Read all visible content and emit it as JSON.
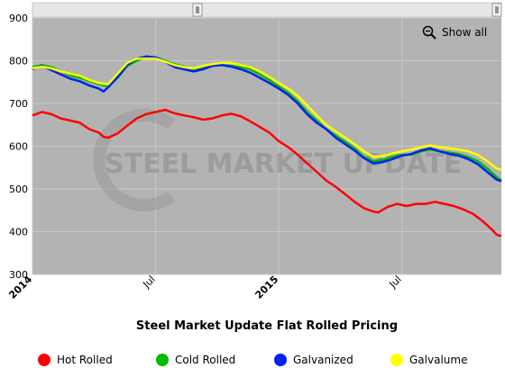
{
  "chart_data": {
    "type": "line",
    "title": "Steel Market Update Flat Rolled Pricing",
    "watermark": "STEEL MARKET UPDATE",
    "ylim": [
      300,
      900
    ],
    "y_ticks": [
      300,
      400,
      500,
      600,
      700,
      800,
      900
    ],
    "x_ticks": [
      {
        "label": "2014",
        "x": 0,
        "bold": true
      },
      {
        "label": "Jul",
        "x": 26,
        "bold": false
      },
      {
        "label": "2015",
        "x": 52,
        "bold": true
      },
      {
        "label": "Jul",
        "x": 78,
        "bold": false
      }
    ],
    "x_range": [
      0,
      99
    ],
    "grid": true,
    "legend_position": "bottom",
    "reset_zoom_label": "Show all",
    "series": [
      {
        "name": "Hot Rolled",
        "color": "#ff0000",
        "points": [
          [
            0,
            672
          ],
          [
            2,
            680
          ],
          [
            4,
            675
          ],
          [
            6,
            665
          ],
          [
            8,
            660
          ],
          [
            10,
            655
          ],
          [
            12,
            640
          ],
          [
            14,
            632
          ],
          [
            15,
            622
          ],
          [
            16,
            620
          ],
          [
            18,
            630
          ],
          [
            20,
            648
          ],
          [
            22,
            665
          ],
          [
            24,
            675
          ],
          [
            26,
            680
          ],
          [
            28,
            685
          ],
          [
            30,
            677
          ],
          [
            32,
            672
          ],
          [
            34,
            668
          ],
          [
            36,
            662
          ],
          [
            38,
            665
          ],
          [
            40,
            672
          ],
          [
            42,
            676
          ],
          [
            44,
            670
          ],
          [
            46,
            658
          ],
          [
            48,
            645
          ],
          [
            50,
            632
          ],
          [
            52,
            612
          ],
          [
            54,
            598
          ],
          [
            56,
            580
          ],
          [
            58,
            560
          ],
          [
            60,
            540
          ],
          [
            62,
            520
          ],
          [
            64,
            505
          ],
          [
            66,
            488
          ],
          [
            68,
            470
          ],
          [
            70,
            455
          ],
          [
            72,
            447
          ],
          [
            73,
            445
          ],
          [
            75,
            458
          ],
          [
            77,
            465
          ],
          [
            79,
            460
          ],
          [
            81,
            465
          ],
          [
            83,
            465
          ],
          [
            85,
            470
          ],
          [
            87,
            465
          ],
          [
            89,
            460
          ],
          [
            91,
            452
          ],
          [
            93,
            442
          ],
          [
            95,
            425
          ],
          [
            97,
            405
          ],
          [
            98,
            393
          ],
          [
            99,
            390
          ]
        ]
      },
      {
        "name": "Cold Rolled",
        "color": "#00bb00",
        "points": [
          [
            0,
            785
          ],
          [
            2,
            790
          ],
          [
            4,
            785
          ],
          [
            6,
            775
          ],
          [
            8,
            765
          ],
          [
            10,
            760
          ],
          [
            12,
            752
          ],
          [
            14,
            745
          ],
          [
            16,
            740
          ],
          [
            18,
            760
          ],
          [
            20,
            788
          ],
          [
            22,
            800
          ],
          [
            24,
            808
          ],
          [
            26,
            808
          ],
          [
            28,
            800
          ],
          [
            30,
            792
          ],
          [
            32,
            786
          ],
          [
            34,
            780
          ],
          [
            36,
            785
          ],
          [
            38,
            790
          ],
          [
            40,
            790
          ],
          [
            42,
            788
          ],
          [
            44,
            785
          ],
          [
            46,
            780
          ],
          [
            48,
            768
          ],
          [
            50,
            755
          ],
          [
            52,
            740
          ],
          [
            54,
            725
          ],
          [
            56,
            705
          ],
          [
            58,
            680
          ],
          [
            60,
            660
          ],
          [
            62,
            640
          ],
          [
            64,
            625
          ],
          [
            66,
            610
          ],
          [
            68,
            595
          ],
          [
            70,
            575
          ],
          [
            72,
            565
          ],
          [
            74,
            568
          ],
          [
            76,
            575
          ],
          [
            78,
            580
          ],
          [
            80,
            580
          ],
          [
            82,
            588
          ],
          [
            84,
            592
          ],
          [
            86,
            588
          ],
          [
            88,
            585
          ],
          [
            90,
            582
          ],
          [
            92,
            575
          ],
          [
            94,
            565
          ],
          [
            96,
            548
          ],
          [
            98,
            528
          ],
          [
            99,
            520
          ]
        ]
      },
      {
        "name": "Galvanized",
        "color": "#0022ee",
        "points": [
          [
            0,
            780
          ],
          [
            2,
            788
          ],
          [
            4,
            778
          ],
          [
            6,
            768
          ],
          [
            8,
            758
          ],
          [
            10,
            752
          ],
          [
            12,
            742
          ],
          [
            14,
            735
          ],
          [
            15,
            728
          ],
          [
            16,
            738
          ],
          [
            18,
            762
          ],
          [
            20,
            790
          ],
          [
            22,
            805
          ],
          [
            24,
            810
          ],
          [
            26,
            808
          ],
          [
            28,
            798
          ],
          [
            30,
            785
          ],
          [
            32,
            780
          ],
          [
            34,
            775
          ],
          [
            36,
            780
          ],
          [
            38,
            788
          ],
          [
            40,
            790
          ],
          [
            42,
            786
          ],
          [
            44,
            780
          ],
          [
            46,
            772
          ],
          [
            48,
            760
          ],
          [
            50,
            748
          ],
          [
            52,
            735
          ],
          [
            54,
            720
          ],
          [
            56,
            700
          ],
          [
            58,
            675
          ],
          [
            60,
            655
          ],
          [
            62,
            640
          ],
          [
            64,
            620
          ],
          [
            66,
            605
          ],
          [
            68,
            590
          ],
          [
            70,
            572
          ],
          [
            72,
            560
          ],
          [
            74,
            563
          ],
          [
            76,
            570
          ],
          [
            78,
            578
          ],
          [
            80,
            582
          ],
          [
            82,
            590
          ],
          [
            84,
            595
          ],
          [
            86,
            588
          ],
          [
            88,
            582
          ],
          [
            90,
            578
          ],
          [
            92,
            570
          ],
          [
            94,
            558
          ],
          [
            96,
            540
          ],
          [
            98,
            522
          ],
          [
            99,
            518
          ]
        ]
      },
      {
        "name": "Galvalume",
        "color": "#ffff00",
        "points": [
          [
            0,
            782
          ],
          [
            2,
            786
          ],
          [
            4,
            782
          ],
          [
            6,
            775
          ],
          [
            8,
            770
          ],
          [
            10,
            765
          ],
          [
            12,
            755
          ],
          [
            14,
            748
          ],
          [
            16,
            745
          ],
          [
            18,
            770
          ],
          [
            20,
            795
          ],
          [
            22,
            805
          ],
          [
            24,
            805
          ],
          [
            26,
            805
          ],
          [
            28,
            798
          ],
          [
            30,
            790
          ],
          [
            32,
            785
          ],
          [
            34,
            782
          ],
          [
            36,
            788
          ],
          [
            38,
            792
          ],
          [
            40,
            795
          ],
          [
            42,
            795
          ],
          [
            44,
            790
          ],
          [
            46,
            785
          ],
          [
            48,
            775
          ],
          [
            50,
            762
          ],
          [
            52,
            748
          ],
          [
            54,
            735
          ],
          [
            56,
            718
          ],
          [
            58,
            695
          ],
          [
            60,
            672
          ],
          [
            62,
            650
          ],
          [
            64,
            635
          ],
          [
            66,
            620
          ],
          [
            68,
            605
          ],
          [
            70,
            588
          ],
          [
            72,
            575
          ],
          [
            74,
            577
          ],
          [
            76,
            583
          ],
          [
            78,
            588
          ],
          [
            80,
            592
          ],
          [
            82,
            598
          ],
          [
            84,
            602
          ],
          [
            86,
            598
          ],
          [
            88,
            595
          ],
          [
            90,
            592
          ],
          [
            92,
            588
          ],
          [
            94,
            580
          ],
          [
            96,
            565
          ],
          [
            98,
            548
          ],
          [
            99,
            545
          ]
        ]
      }
    ]
  }
}
